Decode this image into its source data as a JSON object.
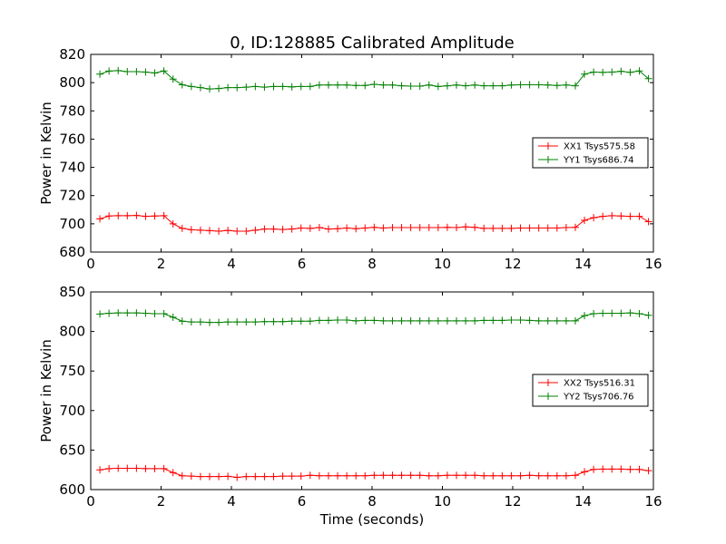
{
  "title": "0, ID:128885 Calibrated Amplitude",
  "chart_data": [
    {
      "type": "line",
      "title": "0, ID:128885 Calibrated Amplitude",
      "xlabel": "",
      "ylabel": "Power in Kelvin",
      "xlim": [
        0,
        16
      ],
      "ylim": [
        680,
        820
      ],
      "xticks": [
        "0",
        "2",
        "4",
        "6",
        "8",
        "10",
        "12",
        "14",
        "16"
      ],
      "yticks": [
        "680",
        "700",
        "720",
        "740",
        "760",
        "780",
        "800",
        "820"
      ],
      "grid": false,
      "legend_position": "center-right",
      "x": [
        0.26,
        0.52,
        0.78,
        1.04,
        1.3,
        1.56,
        1.82,
        2.08,
        2.34,
        2.6,
        2.86,
        3.12,
        3.38,
        3.64,
        3.9,
        4.16,
        4.42,
        4.68,
        4.94,
        5.2,
        5.46,
        5.72,
        5.98,
        6.24,
        6.5,
        6.76,
        7.02,
        7.28,
        7.54,
        7.8,
        8.06,
        8.32,
        8.58,
        8.84,
        9.1,
        9.36,
        9.62,
        9.88,
        10.14,
        10.4,
        10.66,
        10.92,
        11.18,
        11.44,
        11.7,
        11.96,
        12.22,
        12.48,
        12.74,
        13.0,
        13.26,
        13.52,
        13.78,
        14.04,
        14.3,
        14.56,
        14.82,
        15.08,
        15.34,
        15.6,
        15.86
      ],
      "series": [
        {
          "name": "XX1 Tsys575.58",
          "color": "#ff0000",
          "values": [
            703.5,
            705.5,
            705.8,
            705.8,
            705.9,
            705.3,
            705.5,
            705.8,
            700.0,
            696.8,
            695.8,
            695.5,
            695.2,
            694.8,
            695.3,
            694.8,
            694.8,
            695.5,
            696.3,
            696.3,
            696.0,
            696.3,
            697.0,
            696.8,
            697.3,
            696.3,
            696.5,
            697.0,
            696.5,
            697.0,
            697.5,
            697.0,
            697.3,
            697.3,
            697.3,
            697.3,
            697.3,
            697.3,
            697.5,
            697.3,
            697.8,
            697.5,
            696.8,
            696.8,
            696.8,
            696.8,
            697.0,
            697.0,
            697.0,
            697.0,
            697.0,
            697.3,
            697.5,
            702.5,
            704.3,
            705.3,
            705.8,
            705.5,
            705.3,
            705.3,
            701.5
          ]
        },
        {
          "name": "YY1 Tsys686.74",
          "color": "#008000",
          "values": [
            806.0,
            808.2,
            808.5,
            807.8,
            807.8,
            807.5,
            806.8,
            808.3,
            802.5,
            798.5,
            797.3,
            796.5,
            795.5,
            795.8,
            796.5,
            796.5,
            796.8,
            797.3,
            796.8,
            797.3,
            797.3,
            797.0,
            797.3,
            797.3,
            798.3,
            798.3,
            798.3,
            798.3,
            798.0,
            798.0,
            798.8,
            798.3,
            798.3,
            797.8,
            797.5,
            797.5,
            798.3,
            797.3,
            797.8,
            798.3,
            797.8,
            798.3,
            797.8,
            797.8,
            797.8,
            798.3,
            798.5,
            798.5,
            798.5,
            798.3,
            798.0,
            798.3,
            797.8,
            806.0,
            807.5,
            807.2,
            807.5,
            808.0,
            807.3,
            808.3,
            802.8
          ]
        }
      ]
    },
    {
      "type": "line",
      "title": "",
      "xlabel": "Time (seconds)",
      "ylabel": "Power in Kelvin",
      "xlim": [
        0,
        16
      ],
      "ylim": [
        600,
        850
      ],
      "xticks": [
        "0",
        "2",
        "4",
        "6",
        "8",
        "10",
        "12",
        "14",
        "16"
      ],
      "yticks": [
        "600",
        "650",
        "700",
        "750",
        "800",
        "850"
      ],
      "grid": false,
      "legend_position": "center-right",
      "x": [
        0.26,
        0.52,
        0.78,
        1.04,
        1.3,
        1.56,
        1.82,
        2.08,
        2.34,
        2.6,
        2.86,
        3.12,
        3.38,
        3.64,
        3.9,
        4.16,
        4.42,
        4.68,
        4.94,
        5.2,
        5.46,
        5.72,
        5.98,
        6.24,
        6.5,
        6.76,
        7.02,
        7.28,
        7.54,
        7.8,
        8.06,
        8.32,
        8.58,
        8.84,
        9.1,
        9.36,
        9.62,
        9.88,
        10.14,
        10.4,
        10.66,
        10.92,
        11.18,
        11.44,
        11.7,
        11.96,
        12.22,
        12.48,
        12.74,
        13.0,
        13.26,
        13.52,
        13.78,
        14.04,
        14.3,
        14.56,
        14.82,
        15.08,
        15.34,
        15.6,
        15.86
      ],
      "series": [
        {
          "name": "XX2 Tsys516.31",
          "color": "#ff0000",
          "values": [
            625.0,
            626.5,
            627.0,
            627.0,
            627.0,
            626.5,
            626.5,
            626.5,
            621.5,
            617.5,
            617.0,
            616.5,
            616.5,
            616.5,
            616.8,
            615.5,
            616.5,
            616.5,
            616.5,
            616.5,
            617.0,
            617.0,
            617.0,
            618.0,
            617.5,
            617.5,
            617.5,
            617.5,
            617.5,
            617.5,
            618.0,
            618.0,
            618.0,
            618.0,
            618.0,
            618.0,
            617.5,
            617.5,
            618.0,
            618.0,
            618.0,
            618.0,
            617.5,
            617.5,
            617.5,
            617.5,
            617.5,
            618.0,
            617.5,
            617.5,
            617.5,
            617.5,
            618.0,
            622.5,
            625.5,
            626.0,
            626.0,
            626.0,
            625.5,
            625.5,
            624.0
          ]
        },
        {
          "name": "YY2 Tsys706.76",
          "color": "#008000",
          "values": [
            822.0,
            823.0,
            823.5,
            823.5,
            823.5,
            823.0,
            822.5,
            822.5,
            818.0,
            813.0,
            812.0,
            812.0,
            811.5,
            811.5,
            812.0,
            812.0,
            812.0,
            812.0,
            812.5,
            812.5,
            812.5,
            813.0,
            813.0,
            813.0,
            814.0,
            814.0,
            814.5,
            814.5,
            813.5,
            814.0,
            814.0,
            813.5,
            813.5,
            813.5,
            813.5,
            813.5,
            813.5,
            813.5,
            813.5,
            813.5,
            813.5,
            813.5,
            814.0,
            814.0,
            814.0,
            814.5,
            814.5,
            814.0,
            813.5,
            813.5,
            813.5,
            813.5,
            813.5,
            820.0,
            822.5,
            823.0,
            823.0,
            823.0,
            823.5,
            822.5,
            820.5
          ]
        }
      ]
    }
  ]
}
